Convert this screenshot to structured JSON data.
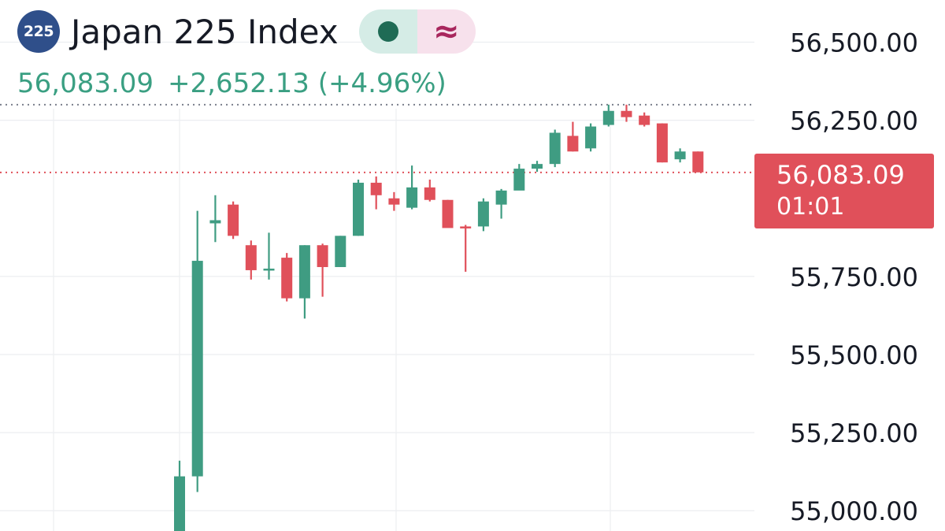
{
  "header": {
    "logo_text": "225",
    "title": "Japan 225 Index",
    "status_icon": "live-dot-icon",
    "approx_icon_glyph": "≈"
  },
  "quote": {
    "price": "56,083.09",
    "change": "+2,652.13 (+4.96%)"
  },
  "price_label": {
    "value": "56,083.09",
    "countdown": "01:01"
  },
  "colors": {
    "up": "#3f9c82",
    "down": "#e0505a",
    "grid": "#eceef1",
    "axis_text": "#161a25",
    "quote_text": "#3a9f82"
  },
  "chart_data": {
    "type": "candlestick",
    "y_ticks": [
      "56,500.00",
      "56,250.00",
      "55,750.00",
      "55,500.00",
      "55,250.00",
      "55,000.00"
    ],
    "y_tick_values": [
      56500,
      56250,
      55750,
      55500,
      55250,
      55000
    ],
    "ylim": [
      54935,
      56635
    ],
    "grid": true,
    "last_price": 56083.09,
    "high_line": 56300,
    "candles": [
      {
        "o": 54930,
        "h": 55160,
        "l": 54930,
        "c": 55110
      },
      {
        "o": 55110,
        "h": 55960,
        "l": 55060,
        "c": 55800
      },
      {
        "o": 55920,
        "h": 56010,
        "l": 55860,
        "c": 55930
      },
      {
        "o": 55980,
        "h": 55990,
        "l": 55870,
        "c": 55880
      },
      {
        "o": 55850,
        "h": 55865,
        "l": 55740,
        "c": 55770
      },
      {
        "o": 55775,
        "h": 55890,
        "l": 55740,
        "c": 55775
      },
      {
        "o": 55810,
        "h": 55825,
        "l": 55670,
        "c": 55680
      },
      {
        "o": 55680,
        "h": 55850,
        "l": 55615,
        "c": 55850
      },
      {
        "o": 55850,
        "h": 55855,
        "l": 55685,
        "c": 55780
      },
      {
        "o": 55780,
        "h": 55880,
        "l": 55780,
        "c": 55880
      },
      {
        "o": 55880,
        "h": 56060,
        "l": 55880,
        "c": 56050
      },
      {
        "o": 56050,
        "h": 56070,
        "l": 55965,
        "c": 56010
      },
      {
        "o": 56000,
        "h": 56020,
        "l": 55960,
        "c": 55980
      },
      {
        "o": 55970,
        "h": 56105,
        "l": 55965,
        "c": 56035
      },
      {
        "o": 56035,
        "h": 56060,
        "l": 55990,
        "c": 55995
      },
      {
        "o": 55995,
        "h": 55995,
        "l": 55915,
        "c": 55905
      },
      {
        "o": 55910,
        "h": 55915,
        "l": 55765,
        "c": 55905
      },
      {
        "o": 55910,
        "h": 56000,
        "l": 55895,
        "c": 55990
      },
      {
        "o": 55980,
        "h": 56030,
        "l": 55935,
        "c": 56025
      },
      {
        "o": 56025,
        "h": 56110,
        "l": 56030,
        "c": 56095
      },
      {
        "o": 56095,
        "h": 56120,
        "l": 56085,
        "c": 56110
      },
      {
        "o": 56110,
        "h": 56220,
        "l": 56100,
        "c": 56210
      },
      {
        "o": 56200,
        "h": 56245,
        "l": 56150,
        "c": 56150
      },
      {
        "o": 56160,
        "h": 56240,
        "l": 56150,
        "c": 56230
      },
      {
        "o": 56235,
        "h": 56300,
        "l": 56230,
        "c": 56280
      },
      {
        "o": 56280,
        "h": 56300,
        "l": 56245,
        "c": 56260
      },
      {
        "o": 56265,
        "h": 56275,
        "l": 56230,
        "c": 56235
      },
      {
        "o": 56240,
        "h": 56240,
        "l": 56115,
        "c": 56115
      },
      {
        "o": 56125,
        "h": 56160,
        "l": 56115,
        "c": 56150
      },
      {
        "o": 56150,
        "h": 56150,
        "l": 56085,
        "c": 56083.09
      }
    ]
  }
}
